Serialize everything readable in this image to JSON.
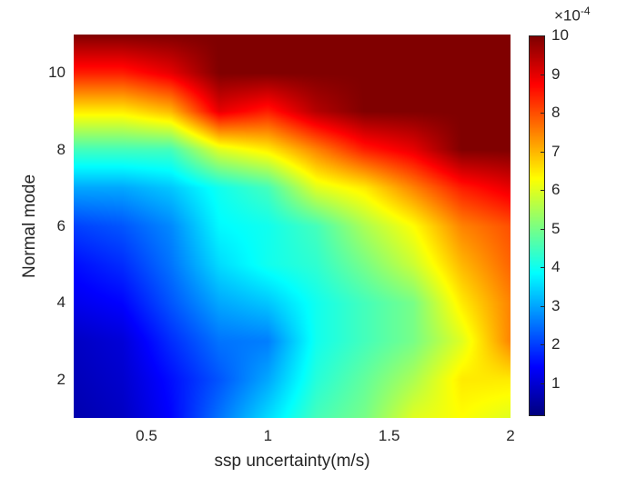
{
  "chart_data": {
    "type": "heatmap",
    "title": "",
    "xlabel": "ssp uncertainty(m/s)",
    "ylabel": "Normal mode",
    "xlim": [
      0.2,
      2
    ],
    "ylim": [
      1,
      11
    ],
    "xticks": [
      0.5,
      1,
      1.5,
      2
    ],
    "xtick_labels": [
      "0.5",
      "1",
      "1.5",
      "2"
    ],
    "yticks": [
      2,
      4,
      6,
      8,
      10
    ],
    "ytick_labels": [
      "2",
      "4",
      "6",
      "8",
      "10"
    ],
    "colormap": "jet",
    "shading": "interp",
    "colorbar": {
      "clim": [
        0.15,
        10
      ],
      "ticks": [
        1,
        2,
        3,
        4,
        5,
        6,
        7,
        8,
        9,
        10
      ],
      "tick_labels": [
        "1",
        "2",
        "3",
        "4",
        "5",
        "6",
        "7",
        "8",
        "9",
        "10"
      ],
      "exponent_prefix": "×10",
      "exponent": "-4",
      "location": "right"
    },
    "x": [
      0.2,
      0.4,
      0.6,
      0.8,
      1.0,
      1.2,
      1.4,
      1.6,
      1.8,
      2.0
    ],
    "y": [
      1,
      2,
      3,
      4,
      5,
      6,
      7,
      8,
      9,
      10,
      11
    ],
    "z_units_scale": "1e-4",
    "z": [
      [
        0.6,
        0.8,
        1.4,
        2.5,
        3.5,
        4.5,
        5.0,
        6.0,
        6.3,
        6.0
      ],
      [
        0.7,
        0.9,
        1.5,
        2.2,
        3.0,
        4.2,
        4.8,
        5.5,
        6.5,
        6.5
      ],
      [
        0.8,
        1.0,
        1.8,
        2.5,
        2.6,
        4.0,
        4.5,
        5.0,
        6.0,
        7.5
      ],
      [
        1.2,
        1.4,
        2.2,
        3.0,
        3.3,
        4.0,
        4.5,
        5.0,
        6.5,
        7.5
      ],
      [
        1.5,
        1.8,
        2.5,
        3.5,
        4.0,
        4.3,
        5.0,
        5.8,
        7.0,
        7.8
      ],
      [
        2.0,
        2.2,
        2.7,
        3.8,
        4.0,
        4.5,
        5.5,
        6.3,
        7.5,
        8.0
      ],
      [
        3.0,
        3.0,
        3.3,
        4.0,
        4.5,
        6.0,
        6.5,
        7.5,
        8.5,
        9.0
      ],
      [
        4.5,
        4.5,
        4.5,
        6.0,
        6.5,
        7.5,
        8.5,
        9.0,
        10,
        10
      ],
      [
        6.5,
        6.5,
        7.0,
        9.0,
        8.5,
        9.5,
        10,
        10,
        10,
        10
      ],
      [
        8.5,
        8.5,
        9.0,
        10,
        10,
        10,
        10,
        10,
        10,
        10
      ],
      [
        10,
        10,
        10,
        10,
        10,
        10,
        10,
        10,
        10,
        10
      ]
    ]
  }
}
